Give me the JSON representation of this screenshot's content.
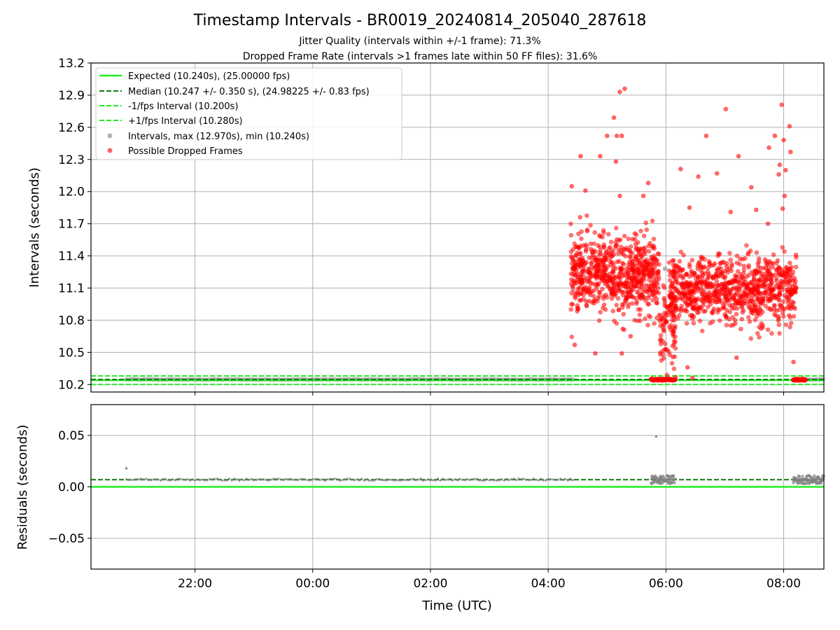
{
  "header": {
    "title": "Timestamp Intervals - BR0019_20240814_205040_287618",
    "subtitle_jitter": "Jitter Quality (intervals within +/-1 frame): 71.3%",
    "subtitle_dropped": "Dropped Frame Rate (intervals >1 frames late within 50 FF files): 31.6%"
  },
  "colors": {
    "expected": "#22ee22",
    "median": "#117711",
    "fps_band": "#22ee22",
    "intervals": "#808080",
    "dropped": "#ff0000",
    "grid": "#b0b0b0"
  },
  "chart_data": [
    {
      "type": "scatter",
      "panel": "intervals",
      "ylabel": "Intervals (seconds)",
      "xlabel": "",
      "ylim": [
        10.13,
        13.2
      ],
      "yticks": [
        "10.2",
        "10.5",
        "10.8",
        "11.1",
        "11.4",
        "11.7",
        "12.0",
        "12.3",
        "12.6",
        "12.9",
        "13.2"
      ],
      "xlim": [
        "20:14",
        "08:41"
      ],
      "xticks": [
        "22:00",
        "00:00",
        "02:00",
        "04:00",
        "06:00",
        "08:00"
      ],
      "grid": true,
      "legend_position": "upper-left",
      "legend": [
        {
          "label": "Expected (10.240s), (25.00000 fps)",
          "style": "solid-line",
          "color": "#22ee22"
        },
        {
          "label": "Median (10.247 +/- 0.350 s), (24.98225 +/- 0.83 fps)",
          "style": "dashed-line",
          "color": "#117711"
        },
        {
          "label": "-1/fps Interval (10.200s)",
          "style": "dashed-line",
          "color": "#22ee22"
        },
        {
          "label": "+1/fps Interval (10.280s)",
          "style": "dashed-line",
          "color": "#22ee22"
        },
        {
          "label": "Intervals, max (12.970s), min (10.240s)",
          "style": "marker",
          "color": "#808080"
        },
        {
          "label": "Possible Dropped Frames",
          "style": "marker",
          "color": "#ff0000"
        }
      ],
      "reference_lines": {
        "expected": 10.24,
        "median": 10.247,
        "minus_fps": 10.2,
        "plus_fps": 10.28
      },
      "series": [
        {
          "name": "Intervals, max (12.970s), min (10.240s)",
          "x_range": [
            "20:50",
            "08:41"
          ],
          "value": 10.247,
          "gaps": [
            [
              "04:25",
              "05:43"
            ],
            [
              "06:10",
              "08:10"
            ]
          ],
          "outliers": [
            {
              "x": "05:59",
              "y": 11.28
            }
          ]
        },
        {
          "name": "Possible Dropped Frames",
          "clusters": [
            {
              "x_range": [
                "04:23",
                "05:53"
              ],
              "y_center": 11.22,
              "y_spread": 0.32,
              "count": 700
            },
            {
              "x_range": [
                "05:53",
                "06:10"
              ],
              "y_center": 10.75,
              "y_spread": 0.42,
              "count": 90
            },
            {
              "x_range": [
                "06:04",
                "08:13"
              ],
              "y_center": 11.08,
              "y_spread": 0.28,
              "count": 850
            }
          ],
          "band_clusters": [
            {
              "x_range": [
                "05:45",
                "06:09"
              ],
              "y": 10.245
            },
            {
              "x_range": [
                "08:10",
                "08:22"
              ],
              "y": 10.245
            }
          ],
          "outliers": [
            {
              "x": "04:24",
              "y": 12.05
            },
            {
              "x": "04:33",
              "y": 12.33
            },
            {
              "x": "04:38",
              "y": 12.01
            },
            {
              "x": "04:53",
              "y": 12.33
            },
            {
              "x": "05:00",
              "y": 12.52
            },
            {
              "x": "05:07",
              "y": 12.69
            },
            {
              "x": "05:09",
              "y": 12.28
            },
            {
              "x": "05:10",
              "y": 12.52
            },
            {
              "x": "05:13",
              "y": 12.93
            },
            {
              "x": "05:15",
              "y": 12.52
            },
            {
              "x": "05:18",
              "y": 12.96
            },
            {
              "x": "05:13",
              "y": 11.96
            },
            {
              "x": "05:37",
              "y": 11.96
            },
            {
              "x": "05:42",
              "y": 12.08
            },
            {
              "x": "06:15",
              "y": 12.21
            },
            {
              "x": "06:24",
              "y": 11.85
            },
            {
              "x": "06:33",
              "y": 12.14
            },
            {
              "x": "06:41",
              "y": 12.52
            },
            {
              "x": "06:52",
              "y": 12.17
            },
            {
              "x": "07:01",
              "y": 12.77
            },
            {
              "x": "07:06",
              "y": 11.81
            },
            {
              "x": "07:14",
              "y": 12.33
            },
            {
              "x": "07:27",
              "y": 12.04
            },
            {
              "x": "07:32",
              "y": 11.83
            },
            {
              "x": "07:45",
              "y": 12.41
            },
            {
              "x": "07:51",
              "y": 12.52
            },
            {
              "x": "07:55",
              "y": 12.16
            },
            {
              "x": "07:58",
              "y": 12.81
            },
            {
              "x": "08:02",
              "y": 12.2
            },
            {
              "x": "08:00",
              "y": 12.48
            },
            {
              "x": "08:06",
              "y": 12.61
            },
            {
              "x": "08:07",
              "y": 12.37
            },
            {
              "x": "08:01",
              "y": 11.96
            },
            {
              "x": "07:59",
              "y": 11.84
            },
            {
              "x": "07:56",
              "y": 12.25
            },
            {
              "x": "07:44",
              "y": 11.7
            },
            {
              "x": "04:48",
              "y": 10.49
            },
            {
              "x": "05:15",
              "y": 10.49
            },
            {
              "x": "05:24",
              "y": 10.65
            },
            {
              "x": "06:22",
              "y": 10.36
            },
            {
              "x": "07:12",
              "y": 10.45
            },
            {
              "x": "08:10",
              "y": 10.41
            },
            {
              "x": "04:27",
              "y": 10.57
            },
            {
              "x": "05:58",
              "y": 10.24
            },
            {
              "x": "06:27",
              "y": 10.26
            }
          ]
        }
      ]
    },
    {
      "type": "scatter",
      "panel": "residuals",
      "ylabel": "Residuals (seconds)",
      "xlabel": "Time (UTC)",
      "ylim": [
        -0.08,
        0.08
      ],
      "yticks": [
        "−0.05",
        "0.00",
        "0.05"
      ],
      "xlim": [
        "20:14",
        "08:41"
      ],
      "xticks": [
        "22:00",
        "00:00",
        "02:00",
        "04:00",
        "06:00",
        "08:00"
      ],
      "grid": true,
      "reference_lines": {
        "expected": 0.0,
        "median": 0.007
      },
      "series": [
        {
          "name": "Residuals",
          "x_range": [
            "20:50",
            "08:41"
          ],
          "value": 0.007,
          "gaps": [
            [
              "04:25",
              "05:43"
            ],
            [
              "06:10",
              "08:10"
            ]
          ],
          "outliers": [
            {
              "x": "20:50",
              "y": 0.018
            },
            {
              "x": "05:50",
              "y": 0.049
            },
            {
              "x": "05:54",
              "y": 0.003
            }
          ]
        }
      ]
    }
  ]
}
